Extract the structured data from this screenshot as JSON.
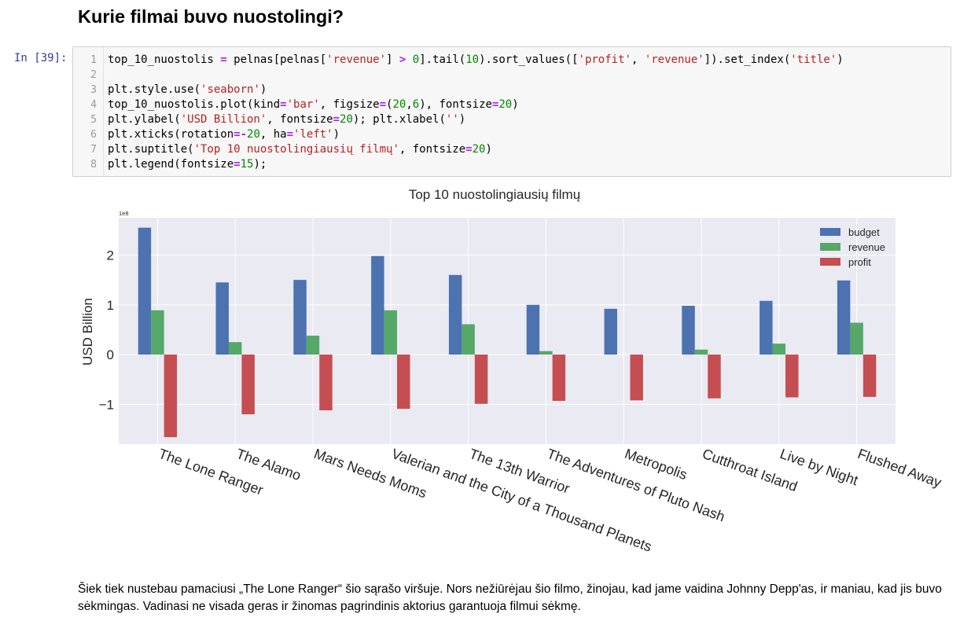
{
  "heading": "Kurie filmai buvo nuostolingi?",
  "cell": {
    "prompt": "In [39]:",
    "code_lines": [
      {
        "n": "1",
        "tokens": [
          {
            "t": "top_10_nuostolis ",
            "c": ""
          },
          {
            "t": "=",
            "c": "o"
          },
          {
            "t": " pelnas[pelnas[",
            "c": ""
          },
          {
            "t": "'revenue'",
            "c": "s"
          },
          {
            "t": "] ",
            "c": ""
          },
          {
            "t": ">",
            "c": "o"
          },
          {
            "t": " ",
            "c": ""
          },
          {
            "t": "0",
            "c": "n"
          },
          {
            "t": "].tail(",
            "c": ""
          },
          {
            "t": "10",
            "c": "n"
          },
          {
            "t": ").sort_values([",
            "c": ""
          },
          {
            "t": "'profit'",
            "c": "s"
          },
          {
            "t": ", ",
            "c": ""
          },
          {
            "t": "'revenue'",
            "c": "s"
          },
          {
            "t": "]).set_index(",
            "c": ""
          },
          {
            "t": "'title'",
            "c": "s"
          },
          {
            "t": ")",
            "c": ""
          }
        ]
      },
      {
        "n": "2",
        "tokens": []
      },
      {
        "n": "3",
        "tokens": [
          {
            "t": "plt.style.use(",
            "c": ""
          },
          {
            "t": "'seaborn'",
            "c": "s"
          },
          {
            "t": ")",
            "c": ""
          }
        ]
      },
      {
        "n": "4",
        "tokens": [
          {
            "t": "top_10_nuostolis.plot(kind",
            "c": ""
          },
          {
            "t": "=",
            "c": "o"
          },
          {
            "t": "'bar'",
            "c": "s"
          },
          {
            "t": ", figsize",
            "c": ""
          },
          {
            "t": "=",
            "c": "o"
          },
          {
            "t": "(",
            "c": ""
          },
          {
            "t": "20",
            "c": "n"
          },
          {
            "t": ",",
            "c": ""
          },
          {
            "t": "6",
            "c": "n"
          },
          {
            "t": "), fontsize",
            "c": ""
          },
          {
            "t": "=",
            "c": "o"
          },
          {
            "t": "20",
            "c": "n"
          },
          {
            "t": ")",
            "c": ""
          }
        ]
      },
      {
        "n": "5",
        "tokens": [
          {
            "t": "plt.ylabel(",
            "c": ""
          },
          {
            "t": "'USD Billion'",
            "c": "s"
          },
          {
            "t": ", fontsize",
            "c": ""
          },
          {
            "t": "=",
            "c": "o"
          },
          {
            "t": "20",
            "c": "n"
          },
          {
            "t": "); plt.xlabel(",
            "c": ""
          },
          {
            "t": "''",
            "c": "s"
          },
          {
            "t": ")",
            "c": ""
          }
        ]
      },
      {
        "n": "6",
        "tokens": [
          {
            "t": "plt.xticks(rotation",
            "c": ""
          },
          {
            "t": "=-",
            "c": "o"
          },
          {
            "t": "20",
            "c": "n"
          },
          {
            "t": ", ha",
            "c": ""
          },
          {
            "t": "=",
            "c": "o"
          },
          {
            "t": "'left'",
            "c": "s"
          },
          {
            "t": ")",
            "c": ""
          }
        ]
      },
      {
        "n": "7",
        "tokens": [
          {
            "t": "plt.suptitle(",
            "c": ""
          },
          {
            "t": "'Top 10 nuostolingiausių filmų'",
            "c": "s"
          },
          {
            "t": ", fontsize",
            "c": ""
          },
          {
            "t": "=",
            "c": "o"
          },
          {
            "t": "20",
            "c": "n"
          },
          {
            "t": ")",
            "c": ""
          }
        ]
      },
      {
        "n": "8",
        "tokens": [
          {
            "t": "plt.legend(fontsize",
            "c": ""
          },
          {
            "t": "=",
            "c": "o"
          },
          {
            "t": "15",
            "c": "n"
          },
          {
            "t": ");",
            "c": ""
          }
        ]
      }
    ]
  },
  "chart_data": {
    "type": "bar",
    "title": "Top 10 nuostolingiausių filmų",
    "ylabel": "USD Billion",
    "xlabel": "",
    "scale_label": "1e8",
    "ylim": [
      -1.8,
      2.75
    ],
    "yticks": [
      -1,
      0,
      1,
      2
    ],
    "ytick_labels": [
      "−1",
      "0",
      "1",
      "2"
    ],
    "grid": true,
    "legend_position": "top-right",
    "categories": [
      "The Lone Ranger",
      "The Alamo",
      "Mars Needs Moms",
      "Valerian and the City of a Thousand Planets",
      "The 13th Warrior",
      "The Adventures of Pluto Nash",
      "Metropolis",
      "Cutthroat Island",
      "Live by Night",
      "Flushed Away"
    ],
    "series": [
      {
        "name": "budget",
        "color": "#4c72b0",
        "values": [
          2.55,
          1.45,
          1.5,
          1.98,
          1.6,
          1.0,
          0.92,
          0.98,
          1.08,
          1.49
        ]
      },
      {
        "name": "revenue",
        "color": "#55a868",
        "values": [
          0.89,
          0.25,
          0.38,
          0.89,
          0.61,
          0.07,
          0.0,
          0.1,
          0.22,
          0.64
        ]
      },
      {
        "name": "profit",
        "color": "#c44e52",
        "values": [
          -1.66,
          -1.2,
          -1.12,
          -1.09,
          -0.99,
          -0.93,
          -0.92,
          -0.88,
          -0.86,
          -0.85
        ]
      }
    ]
  },
  "paragraph": "Šiek tiek nustebau pamaciusi „The Lone Ranger“ šio sąrašo viršuje. Nors nežiūrėjau šio filmo, žinojau, kad jame vaidina Johnny Depp'as, ir maniau, kad jis buvo sėkmingas. Vadinasi ne visada geras ir žinomas pagrindinis aktorius garantuoja filmui sėkmę."
}
